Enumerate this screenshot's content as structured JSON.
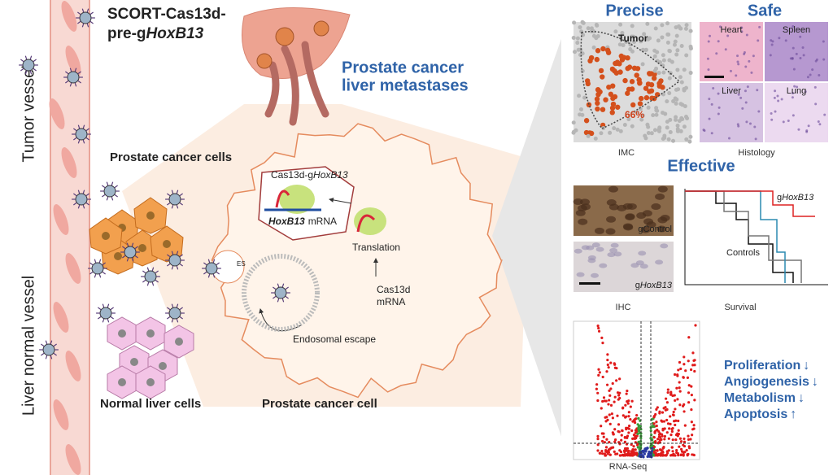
{
  "title": {
    "line1": "SCORT-Cas13d-",
    "line2_prefix": "pre-g",
    "line2_gene": "HoxB13"
  },
  "vessel_labels": {
    "tumor": "Tumor vessel",
    "normal": "Liver normal vessel"
  },
  "liver_label": {
    "line1": "Prostate cancer",
    "line2": "liver metastases"
  },
  "cell_labels": {
    "cancer_cells": "Prostate cancer cells",
    "normal_cells": "Normal liver cells",
    "cancer_cell": "Prostate cancer cell"
  },
  "mechanism": {
    "complex_prefix": "Cas13d-g",
    "complex_gene": "HoxB13",
    "mrna_gene": "HoxB13",
    "mrna_suffix": "mRNA",
    "translation": "Translation",
    "cas13d_mrna_line1": "Cas13d",
    "cas13d_mrna_line2": "mRNA",
    "endosomal_escape": "Endosomal escape",
    "es": "ES"
  },
  "panels": {
    "precise": {
      "title": "Precise",
      "tumor": "Tumor",
      "percent": "66%",
      "caption": "IMC"
    },
    "safe": {
      "title": "Safe",
      "tiles": [
        "Heart",
        "Spleen",
        "Liver",
        "Lung"
      ],
      "caption": "Histology"
    },
    "effective": {
      "title": "Effective",
      "ihc_control": "gControl",
      "ihc_treated_prefix": "g",
      "ihc_treated_gene": "HoxB13",
      "ihc_caption": "IHC",
      "survival_treated_prefix": "g",
      "survival_treated_gene": "HoxB13",
      "survival_controls": "Controls",
      "survival_caption": "Survival"
    },
    "rnaseq": {
      "caption": "RNA-Seq",
      "effects": [
        {
          "label": "Proliferation",
          "arrow": "↓"
        },
        {
          "label": "Angiogenesis",
          "arrow": "↓"
        },
        {
          "label": "Metabolism",
          "arrow": "↓"
        },
        {
          "label": "Apoptosis",
          "arrow": "↑"
        }
      ]
    }
  }
}
